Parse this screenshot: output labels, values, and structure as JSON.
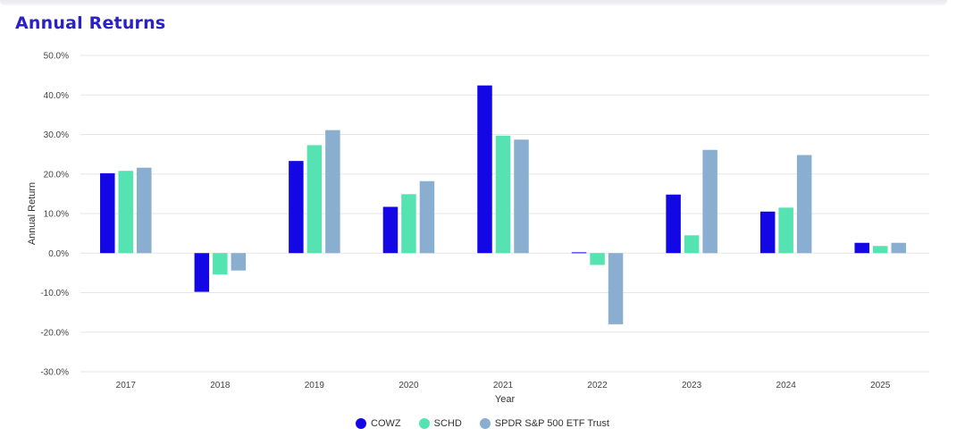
{
  "page": {
    "title": "Annual Returns"
  },
  "chart_data": {
    "type": "bar",
    "title": "Annual Returns",
    "xlabel": "Year",
    "ylabel": "Annual Return",
    "ylim": [
      -30,
      50
    ],
    "yticks": [
      "50.0%",
      "40.0%",
      "30.0%",
      "20.0%",
      "10.0%",
      "0.0%",
      "-10.0%",
      "-20.0%",
      "-30.0%"
    ],
    "ytick_values": [
      50,
      40,
      30,
      20,
      10,
      0,
      -10,
      -20,
      -30
    ],
    "categories": [
      "2017",
      "2018",
      "2019",
      "2020",
      "2021",
      "2022",
      "2023",
      "2024",
      "2025"
    ],
    "grid": true,
    "legend_position": "bottom",
    "series": [
      {
        "name": "COWZ",
        "color": "#1307e6",
        "values": [
          20.2,
          -9.8,
          23.3,
          11.7,
          42.4,
          0.2,
          14.8,
          10.5,
          2.6
        ]
      },
      {
        "name": "SCHD",
        "color": "#54e3b1",
        "values": [
          20.8,
          -5.4,
          27.3,
          14.9,
          29.7,
          -3.0,
          4.5,
          11.5,
          1.8
        ]
      },
      {
        "name": "SPDR S&P 500 ETF Trust",
        "color": "#8aaed0",
        "values": [
          21.6,
          -4.4,
          31.1,
          18.2,
          28.7,
          -18.0,
          26.1,
          24.8,
          2.6
        ]
      }
    ]
  }
}
